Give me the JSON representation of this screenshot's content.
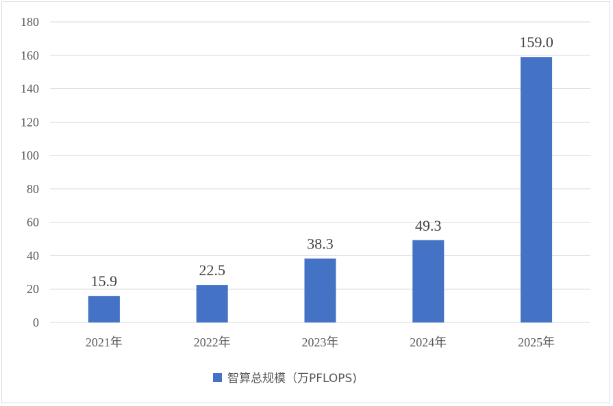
{
  "chart_data": {
    "type": "bar",
    "categories": [
      "2021年",
      "2022年",
      "2023年",
      "2024年",
      "2025年"
    ],
    "series": [
      {
        "name": "智算总规模（万PFLOPS)",
        "values": [
          15.9,
          22.5,
          38.3,
          49.3,
          159.0
        ],
        "data_labels": [
          "15.9",
          "22.5",
          "38.3",
          "49.3",
          "159.0"
        ],
        "color": "#4472c4"
      }
    ],
    "y_ticks": [
      "0",
      "20",
      "40",
      "60",
      "80",
      "100",
      "120",
      "140",
      "160",
      "180"
    ],
    "ylim": [
      0,
      180
    ],
    "grid": true,
    "legend_position": "bottom",
    "gridline_color": "#d9d9d9",
    "axis_text_color": "#595959"
  }
}
